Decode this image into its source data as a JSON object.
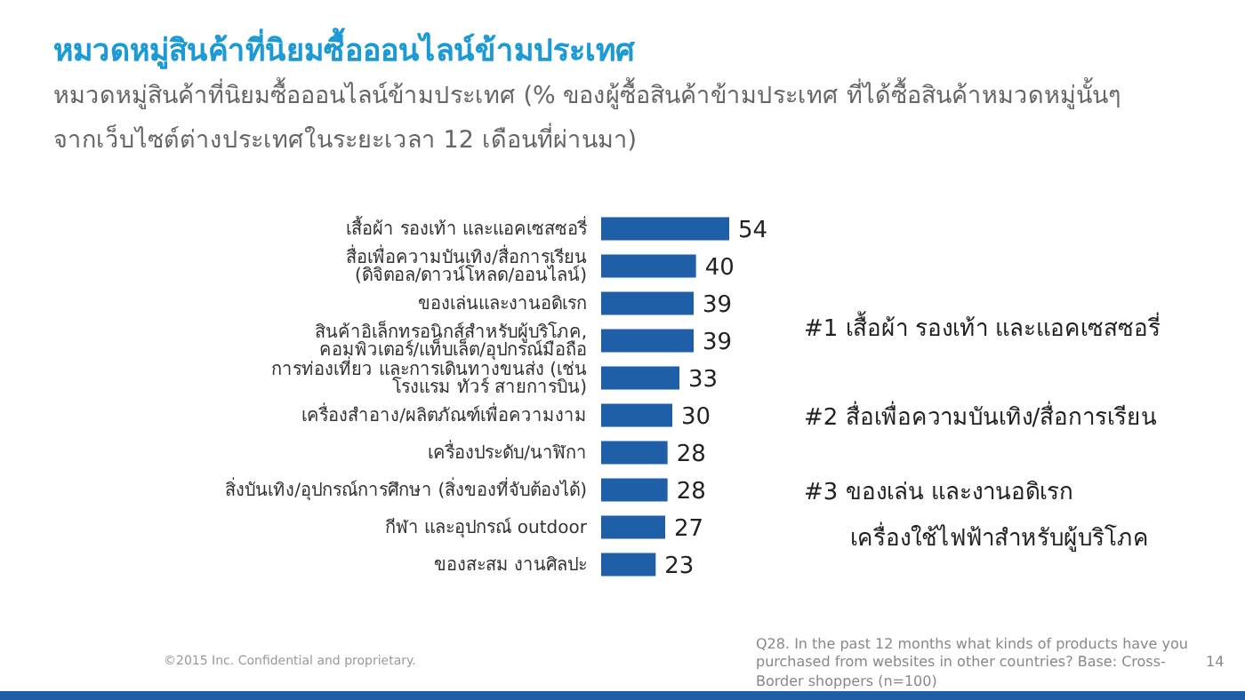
{
  "chart_data": {
    "type": "bar",
    "orientation": "horizontal",
    "title": "หมวดหมู่สินค้าที่นิยมซื้อออนไลน์ข้ามประเทศ",
    "subtitle": "หมวดหมู่สินค้าที่นิยมซื้อออนไลน์ข้ามประเทศ (% ของผู้ซื้อสินค้าข้ามประเทศ ที่ได้ซื้อสินค้าหมวดหมู่นั้นๆ จากเว็บไซต์ต่างประเทศในระยะเวลา 12 เดือนที่ผ่านมา)",
    "categories": [
      "เสื้อผ้า รองเท้า และแอคเซสซอรี่",
      "สื่อเพื่อความบันเทิง/สื่อการเรียน (ดิจิตอล/ดาวน์โหลด/ออนไลน์)",
      "ของเล่นและงานอดิเรก",
      "สินค้าอิเล็กทรอนิกส์สำหรับผู้บริโภค, คอมพิวเตอร์/แท็บเล็ต/อุปกรณ์มือถือ",
      "การท่องเที่ยว และการเดินทางขนส่ง (เช่น โรงแรม ทัวร์ สายการบิน)",
      "เครื่องสำอาง/ผลิตภัณฑ์เพื่อความงาม",
      "เครื่องประดับ/นาฬิกา",
      "สิ่งบันเทิง/อุปกรณ์การศึกษา (สิ่งของที่จับต้องได้)",
      "กีฬา และอุปกรณ์ outdoor",
      "ของสะสม งานศิลปะ"
    ],
    "values": [
      54,
      40,
      39,
      39,
      33,
      30,
      28,
      28,
      27,
      23
    ],
    "color": "#1f5fa8",
    "data_labels": true,
    "annotations": [
      "#1 เสื้อผ้า รองเท้า และแอคเซสซอรี่",
      "#2 สื่อเพื่อความบันเทิง/สื่อการเรียน",
      "#3 ของเล่น และงานอดิเรก",
      "เครื่องใช้ไฟฟ้าสำหรับผู้บริโภค",
      "©2015 Inc. Confidential and proprietary.",
      "Q28. In the past 12 months what kinds of products have you purchased from websites in other countries? Base: Cross-Border shoppers (n=100)",
      "14"
    ]
  }
}
